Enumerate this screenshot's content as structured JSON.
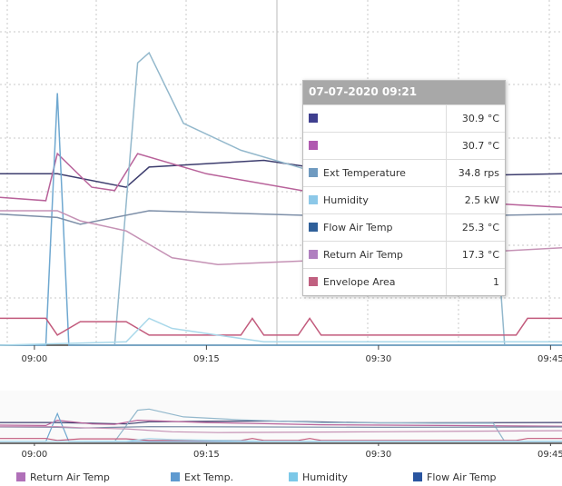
{
  "chart_data": {
    "type": "line",
    "xlim": [
      "08:57",
      "09:46"
    ],
    "xticks": [
      "09:00",
      "09:15",
      "09:30",
      "09:45"
    ],
    "ylim": [
      0,
      100
    ],
    "series": [
      {
        "color": "#3d3d6e",
        "x": [
          "08:57",
          "09:02",
          "09:08",
          "09:10",
          "09:20",
          "09:30",
          "09:46"
        ],
        "values": [
          51,
          51,
          47,
          53,
          55,
          50,
          51
        ]
      },
      {
        "color": "#b8629a",
        "x": [
          "08:57",
          "09:01",
          "09:02",
          "09:05",
          "09:07",
          "09:09",
          "09:15",
          "09:25",
          "09:46"
        ],
        "values": [
          44,
          43,
          57,
          47,
          46,
          57,
          51,
          45,
          41
        ]
      },
      {
        "color": "#93b8cc",
        "x": [
          "09:07",
          "09:09",
          "09:10",
          "09:13",
          "09:18",
          "09:25",
          "09:35",
          "09:40",
          "09:41"
        ],
        "values": [
          0,
          84,
          87,
          66,
          58,
          51,
          49,
          49,
          0
        ]
      },
      {
        "color": "#6fa8d0",
        "x": [
          "08:57",
          "09:01",
          "09:02",
          "09:03",
          "09:46"
        ],
        "values": [
          0,
          0,
          75,
          0,
          0
        ]
      },
      {
        "color": "#7d8fa8",
        "x": [
          "08:57",
          "09:02",
          "09:04",
          "09:07",
          "09:10",
          "09:30",
          "09:46"
        ],
        "values": [
          39,
          38,
          36,
          38,
          40,
          38,
          39
        ]
      },
      {
        "color": "#c592b5",
        "x": [
          "08:57",
          "09:02",
          "09:04",
          "09:08",
          "09:12",
          "09:16",
          "09:30",
          "09:46"
        ],
        "values": [
          40,
          40,
          37,
          34,
          26,
          24,
          26,
          29
        ]
      },
      {
        "color": "#c25a7c",
        "x": [
          "08:57",
          "09:01",
          "09:02",
          "09:04",
          "09:08",
          "09:10",
          "09:18",
          "09:19",
          "09:20",
          "09:23",
          "09:24",
          "09:25",
          "09:42",
          "09:43",
          "09:46"
        ],
        "values": [
          8,
          8,
          3,
          7,
          7,
          3,
          3,
          8,
          3,
          3,
          8,
          3,
          3,
          8,
          8
        ]
      },
      {
        "color": "#a9d8ea",
        "x": [
          "08:57",
          "09:08",
          "09:10",
          "09:12",
          "09:20",
          "09:46"
        ],
        "values": [
          0,
          1,
          8,
          5,
          1,
          1
        ]
      }
    ],
    "tooltip": {
      "title": "07-07-2020 09:21",
      "rows": [
        {
          "color": "#3f3f8f",
          "value": "30.9 °C"
        },
        {
          "color": "#b05ab0",
          "value": "30.7 °C"
        },
        {
          "color": "#6f9ac0",
          "name": "Ext Temperature",
          "value": "34.8 rps"
        },
        {
          "color": "#8cc8e8",
          "name": "Humidity",
          "value": "2.5 kW"
        },
        {
          "color": "#2f5f99",
          "name": "Flow Air Temp",
          "value": "25.3 °C"
        },
        {
          "color": "#b080c0",
          "name": "Return Air Temp",
          "value": "17.3 °C"
        },
        {
          "color": "#c06080",
          "name": "Envelope Area",
          "value": "1"
        }
      ]
    },
    "legend": [
      {
        "name": "Return Air Temp",
        "color": "#b070b8"
      },
      {
        "name": "Ext Temp.",
        "color": "#5f9ad0"
      },
      {
        "name": "Humidity",
        "color": "#7cc8e8"
      },
      {
        "name": "Flow Air Temp",
        "color": "#2a55a0"
      }
    ]
  }
}
